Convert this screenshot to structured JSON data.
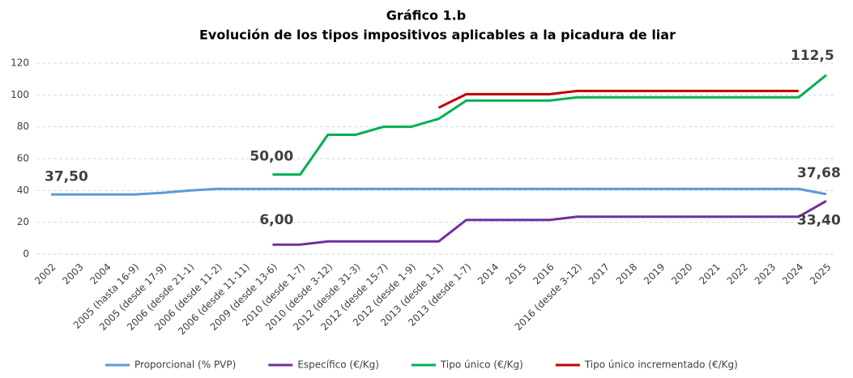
{
  "chart_data": {
    "type": "line",
    "title": "Gráfico 1.b",
    "subtitle": "Evolución de los tipos impositivos aplicables a la picadura de liar",
    "categories": [
      "2002",
      "2003",
      "2004",
      "2005 (hasta 16-9)",
      "2005 (desde 17-9)",
      "2006 (desde 21-1)",
      "2006 (desde 11-2)",
      "2006 (desde 11-11)",
      "2009 (desde 13-6)",
      "2010 (desde 1-7)",
      "2010 (desde 3-12)",
      "2012 (desde 31-3)",
      "2012 (desde 15-7)",
      "2012 (desde 1-9)",
      "2013 (desde 1-1)",
      "2013 (desde 1-7)",
      "2014",
      "2015",
      "2016",
      "2016 (desde 3-12)",
      "2017",
      "2018",
      "2019",
      "2020",
      "2021",
      "2022",
      "2023",
      "2024",
      "2025"
    ],
    "series": [
      {
        "name": "Proporcional (% PVP)",
        "color": "#5b9bd5",
        "values": [
          37.5,
          37.5,
          37.5,
          37.5,
          38.5,
          40,
          41,
          41,
          41,
          41,
          41,
          41,
          41,
          41,
          41,
          41,
          41,
          41,
          41,
          41,
          41,
          41,
          41,
          41,
          41,
          41,
          41,
          41,
          37.68
        ],
        "value_labels": [
          "37,50",
          null,
          null,
          null,
          null,
          null,
          null,
          null,
          null,
          null,
          null,
          null,
          null,
          null,
          null,
          null,
          null,
          null,
          null,
          null,
          null,
          null,
          null,
          null,
          null,
          null,
          null,
          null,
          "37,68"
        ]
      },
      {
        "name": "Específico (€/Kg)",
        "color": "#7030a0",
        "values": [
          null,
          null,
          null,
          null,
          null,
          null,
          null,
          null,
          6,
          6,
          8,
          8,
          8,
          8,
          8,
          21.5,
          21.5,
          21.5,
          21.5,
          23.5,
          23.5,
          23.5,
          23.5,
          23.5,
          23.5,
          23.5,
          23.5,
          23.5,
          33.4
        ],
        "value_labels": [
          null,
          null,
          null,
          null,
          null,
          null,
          null,
          null,
          "6,00",
          null,
          null,
          null,
          null,
          null,
          null,
          null,
          null,
          null,
          null,
          null,
          null,
          null,
          null,
          null,
          null,
          null,
          null,
          null,
          "33,40"
        ]
      },
      {
        "name": "Tipo único (€/Kg)",
        "color": "#00b050",
        "values": [
          null,
          null,
          null,
          null,
          null,
          null,
          null,
          null,
          50,
          50,
          75,
          75,
          80,
          80,
          85,
          96.5,
          96.5,
          96.5,
          96.5,
          98.5,
          98.5,
          98.5,
          98.5,
          98.5,
          98.5,
          98.5,
          98.5,
          98.5,
          112.5
        ],
        "value_labels": [
          null,
          null,
          null,
          null,
          null,
          null,
          null,
          null,
          "50,00",
          null,
          null,
          null,
          null,
          null,
          null,
          null,
          null,
          null,
          null,
          null,
          null,
          null,
          null,
          null,
          null,
          null,
          null,
          null,
          "112,5"
        ]
      },
      {
        "name": "Tipo único incrementado (€/Kg)",
        "color": "#c00000",
        "values": [
          null,
          null,
          null,
          null,
          null,
          null,
          null,
          null,
          null,
          null,
          null,
          null,
          null,
          null,
          92,
          100.5,
          100.5,
          100.5,
          100.5,
          102.5,
          102.5,
          102.5,
          102.5,
          102.5,
          102.5,
          102.5,
          102.5,
          102.5,
          null
        ]
      }
    ],
    "ylim": [
      0,
      120
    ],
    "yticks": [
      0,
      20,
      40,
      60,
      80,
      100,
      120
    ],
    "grid": true,
    "legend": "bottom"
  }
}
